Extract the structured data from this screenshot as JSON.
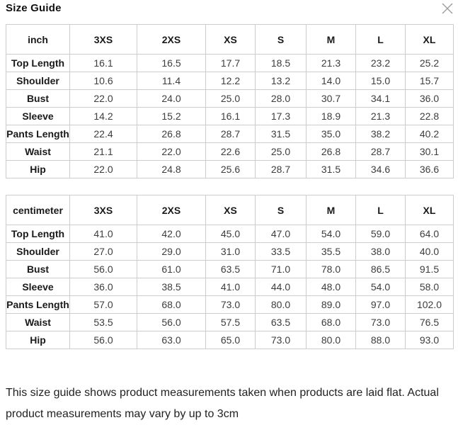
{
  "modal": {
    "title": "Size Guide",
    "close_icon": "close-x",
    "close_icon_color": "#9e9e9e"
  },
  "colors": {
    "background": "#ffffff",
    "table_border": "#cccccc",
    "label_text": "#1a1a1a",
    "value_text": "#3d3d3d"
  },
  "tables": [
    {
      "unit_label": "inch",
      "columns": [
        "3XS",
        "2XS",
        "XS",
        "S",
        "M",
        "L",
        "XL"
      ],
      "rows": [
        {
          "label": "Top Length",
          "values": [
            "16.1",
            "16.5",
            "17.7",
            "18.5",
            "21.3",
            "23.2",
            "25.2"
          ]
        },
        {
          "label": "Shoulder",
          "values": [
            "10.6",
            "11.4",
            "12.2",
            "13.2",
            "14.0",
            "15.0",
            "15.7"
          ]
        },
        {
          "label": "Bust",
          "values": [
            "22.0",
            "24.0",
            "25.0",
            "28.0",
            "30.7",
            "34.1",
            "36.0"
          ]
        },
        {
          "label": "Sleeve",
          "values": [
            "14.2",
            "15.2",
            "16.1",
            "17.3",
            "18.9",
            "21.3",
            "22.8"
          ]
        },
        {
          "label": "Pants Length",
          "values": [
            "22.4",
            "26.8",
            "28.7",
            "31.5",
            "35.0",
            "38.2",
            "40.2"
          ]
        },
        {
          "label": "Waist",
          "values": [
            "21.1",
            "22.0",
            "22.6",
            "25.0",
            "26.8",
            "28.7",
            "30.1"
          ]
        },
        {
          "label": "Hip",
          "values": [
            "22.0",
            "24.8",
            "25.6",
            "28.7",
            "31.5",
            "34.6",
            "36.6"
          ]
        }
      ]
    },
    {
      "unit_label": "centimeter",
      "columns": [
        "3XS",
        "2XS",
        "XS",
        "S",
        "M",
        "L",
        "XL"
      ],
      "rows": [
        {
          "label": "Top Length",
          "values": [
            "41.0",
            "42.0",
            "45.0",
            "47.0",
            "54.0",
            "59.0",
            "64.0"
          ]
        },
        {
          "label": "Shoulder",
          "values": [
            "27.0",
            "29.0",
            "31.0",
            "33.5",
            "35.5",
            "38.0",
            "40.0"
          ]
        },
        {
          "label": "Bust",
          "values": [
            "56.0",
            "61.0",
            "63.5",
            "71.0",
            "78.0",
            "86.5",
            "91.5"
          ]
        },
        {
          "label": "Sleeve",
          "values": [
            "36.0",
            "38.5",
            "41.0",
            "44.0",
            "48.0",
            "54.0",
            "58.0"
          ]
        },
        {
          "label": "Pants Length",
          "values": [
            "57.0",
            "68.0",
            "73.0",
            "80.0",
            "89.0",
            "97.0",
            "102.0"
          ]
        },
        {
          "label": "Waist",
          "values": [
            "53.5",
            "56.0",
            "57.5",
            "63.5",
            "68.0",
            "73.0",
            "76.5"
          ]
        },
        {
          "label": "Hip",
          "values": [
            "56.0",
            "63.0",
            "65.0",
            "73.0",
            "80.0",
            "88.0",
            "93.0"
          ]
        }
      ]
    }
  ],
  "note": "This size guide shows product measurements taken when products are laid flat. Actual product measurements may vary by up to 3cm"
}
